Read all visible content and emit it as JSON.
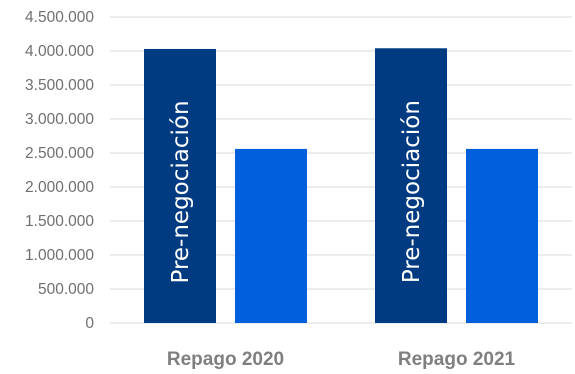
{
  "chart_data": {
    "type": "bar",
    "categories": [
      "Repago 2020",
      "Repago 2021"
    ],
    "series": [
      {
        "values": [
          4030000,
          4040000
        ],
        "color": "#003a80",
        "bar_labels": [
          "Pre-negociación",
          "Pre-negociación"
        ]
      },
      {
        "values": [
          2560000,
          2560000
        ],
        "color": "#005fdc",
        "bar_labels": [
          "",
          ""
        ]
      }
    ],
    "yticks": [
      "0",
      "500.000",
      "1.000.000",
      "1.500.000",
      "2.000.000",
      "2.500.000",
      "3.000.000",
      "3.500.000",
      "4.000.000",
      "4.500.000"
    ],
    "ylim": [
      0,
      4500000
    ],
    "grid": true,
    "legend": "none"
  }
}
